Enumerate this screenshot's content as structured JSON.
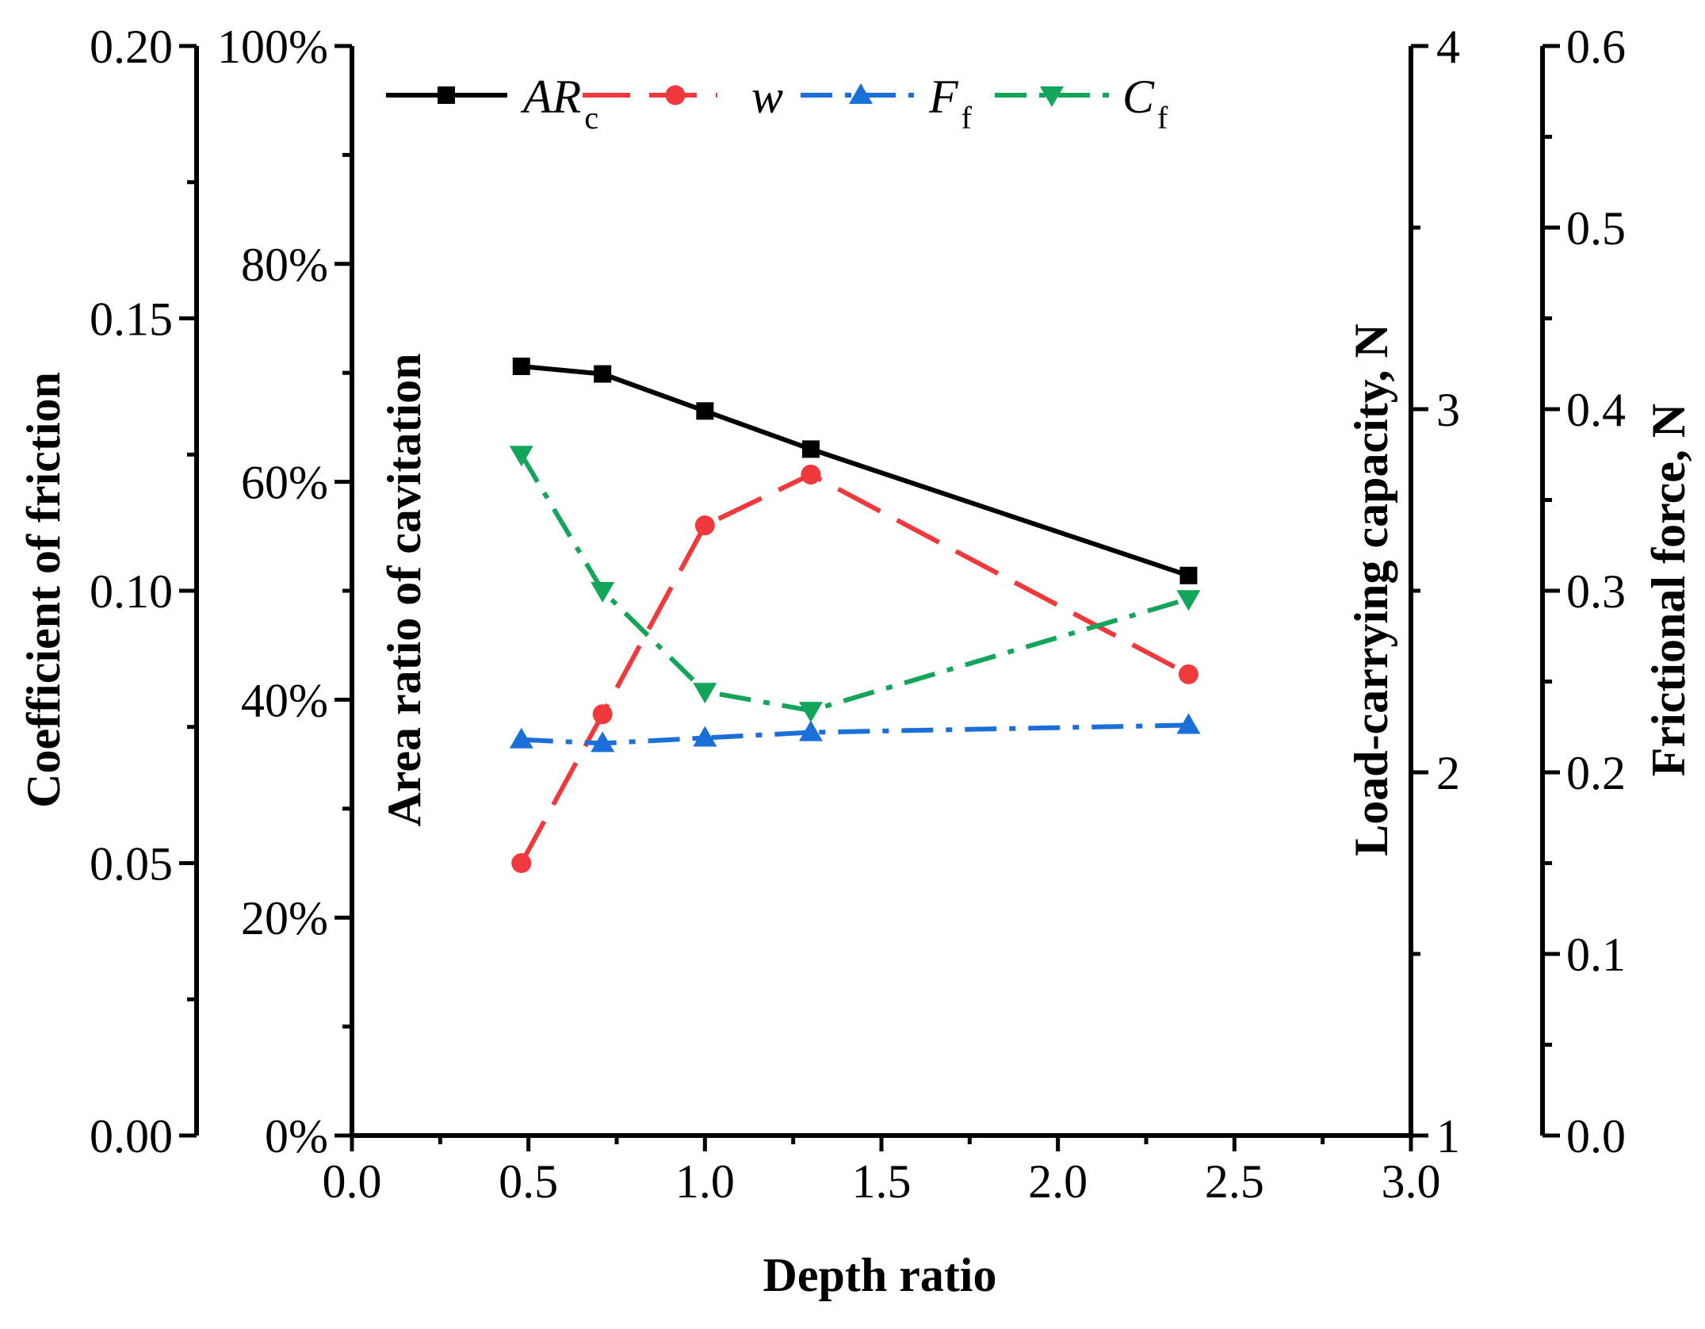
{
  "chart_data": {
    "type": "line",
    "title": "",
    "xlabel": "Depth ratio",
    "xlim": [
      0.0,
      3.0
    ],
    "x_ticks": [
      "0.0",
      "0.5",
      "1.0",
      "1.5",
      "2.0",
      "2.5",
      "3.0"
    ],
    "x": [
      0.48,
      0.71,
      1.0,
      1.3,
      2.37
    ],
    "axes": {
      "cf": {
        "label": "Coefficient of friction",
        "lim": [
          0.0,
          0.2
        ],
        "ticks": [
          "0.00",
          "0.05",
          "0.10",
          "0.15",
          "0.20"
        ],
        "position": "outer-left"
      },
      "ar": {
        "label": "Area ratio of cavitation",
        "lim": [
          0,
          100
        ],
        "ticks": [
          "0%",
          "20%",
          "40%",
          "60%",
          "80%",
          "100%"
        ],
        "position": "inner-left"
      },
      "w": {
        "label": "Load-carrying capacity, N",
        "lim": [
          1,
          4
        ],
        "ticks": [
          "1",
          "2",
          "3",
          "4"
        ],
        "position": "inner-right"
      },
      "ff": {
        "label": "Frictional force, N",
        "lim": [
          0.0,
          0.6
        ],
        "ticks": [
          "0.0",
          "0.1",
          "0.2",
          "0.3",
          "0.4",
          "0.5",
          "0.6"
        ],
        "position": "outer-right"
      }
    },
    "series": [
      {
        "name": "AR",
        "subscript": "c",
        "axis": "ar",
        "color": "#000000",
        "marker": "square",
        "line": "solid",
        "values": [
          70.6,
          69.9,
          66.5,
          63.0,
          51.4
        ]
      },
      {
        "name": "w",
        "subscript": "",
        "axis": "w",
        "color": "#f0393c",
        "marker": "circle",
        "line": "dash",
        "values": [
          1.75,
          2.16,
          2.68,
          2.82,
          2.27
        ]
      },
      {
        "name": "F",
        "subscript": "f",
        "axis": "ff",
        "color": "#1a6fd9",
        "marker": "triangle-up",
        "line": "dashdot",
        "values": [
          0.218,
          0.216,
          0.219,
          0.222,
          0.226
        ]
      },
      {
        "name": "C",
        "subscript": "f",
        "axis": "cf",
        "color": "#13a55a",
        "marker": "triangle-down",
        "line": "dashdot",
        "values": [
          0.125,
          0.1,
          0.0815,
          0.078,
          0.0985
        ]
      }
    ],
    "legend": {
      "placement": "top"
    }
  }
}
